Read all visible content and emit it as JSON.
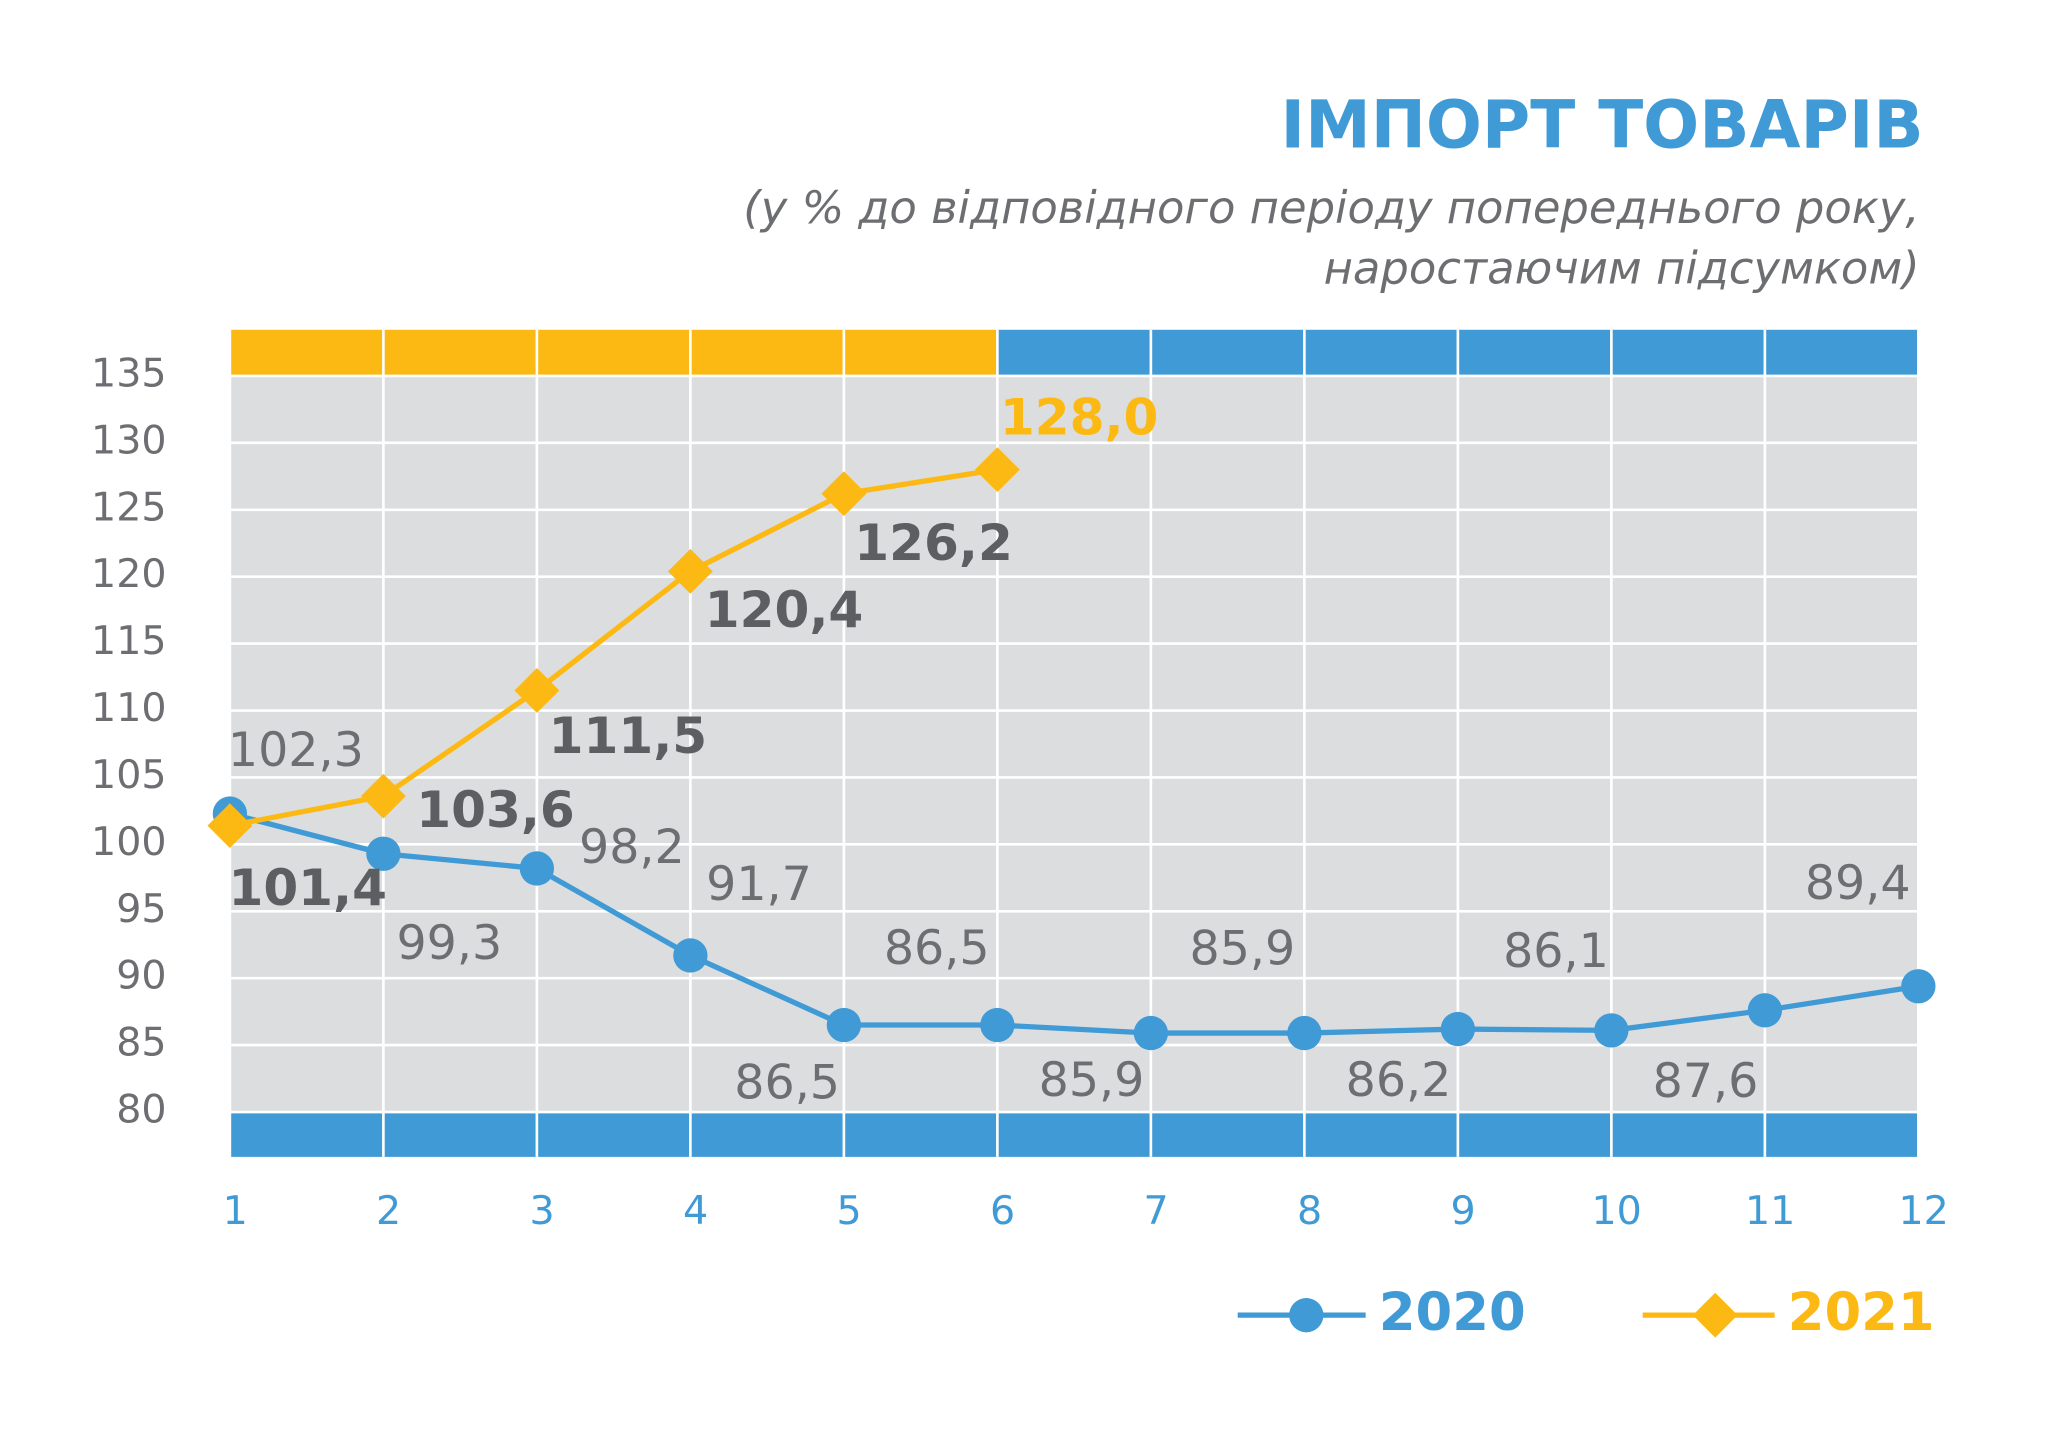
{
  "chart_data": {
    "type": "line",
    "title": "ІМПОРТ ТОВАРІВ",
    "subtitle": [
      "(у % до відповідного періоду попереднього року,",
      "наростаючим підсумком)"
    ],
    "categories": [
      "1",
      "2",
      "3",
      "4",
      "5",
      "6",
      "7",
      "8",
      "9",
      "10",
      "11",
      "12"
    ],
    "series": [
      {
        "name": "2020",
        "color": "#3f9ad6",
        "marker": "circle",
        "values": [
          102.3,
          99.3,
          98.2,
          91.7,
          86.5,
          86.5,
          85.9,
          85.9,
          86.2,
          86.1,
          87.6,
          89.4
        ],
        "value_labels": [
          "102,3",
          "99,3",
          "98,2",
          "91,7",
          "86,5",
          "86,5",
          "85,9",
          "85,9",
          "86,2",
          "86,1",
          "87,6",
          "89,4"
        ]
      },
      {
        "name": "2021",
        "color": "#fdb913",
        "marker": "diamond",
        "values": [
          101.4,
          103.6,
          111.5,
          120.4,
          126.2,
          128.0,
          null,
          null,
          null,
          null,
          null,
          null
        ],
        "value_labels": [
          "101,4",
          "103,6",
          "111,5",
          "120,4",
          "126,2",
          "128,0",
          null,
          null,
          null,
          null,
          null,
          null
        ]
      }
    ],
    "ylim": [
      80,
      135
    ],
    "yticks": [
      80,
      85,
      90,
      95,
      100,
      105,
      110,
      115,
      120,
      125,
      130,
      135
    ],
    "grid": true
  }
}
